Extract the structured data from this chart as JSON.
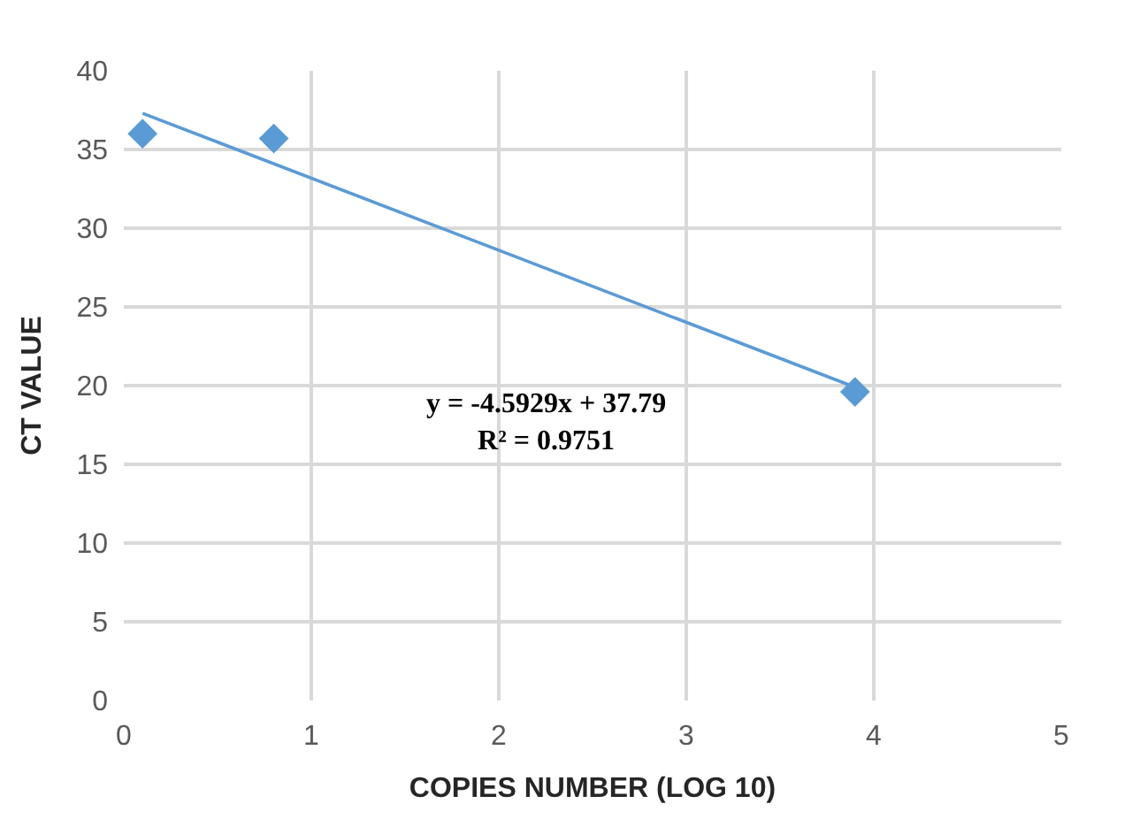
{
  "chart_data": {
    "type": "scatter",
    "xlabel": "COPIES NUMBER (LOG 10)",
    "ylabel": "CT VALUE",
    "xlim": [
      0,
      5
    ],
    "xticks": [
      0,
      1,
      2,
      3,
      4,
      5
    ],
    "ylim": [
      0,
      40
    ],
    "yticks": [
      0,
      5,
      10,
      15,
      20,
      25,
      30,
      35,
      40
    ],
    "grid": true,
    "marker": "diamond",
    "series": [
      {
        "color": "#5b9bd5",
        "x": [
          0.1,
          0.8,
          3.9
        ],
        "values": [
          36,
          35.7,
          19.6
        ]
      },
      {
        "type": "line",
        "color": "#5b9bd5",
        "x": [
          0.1,
          3.9
        ],
        "values": [
          37.3,
          19.9
        ],
        "marker": "none",
        "line_style": "solid"
      }
    ],
    "annotations": [
      "y = -4.5929x + 37.79\nR² = 0.9751"
    ]
  }
}
